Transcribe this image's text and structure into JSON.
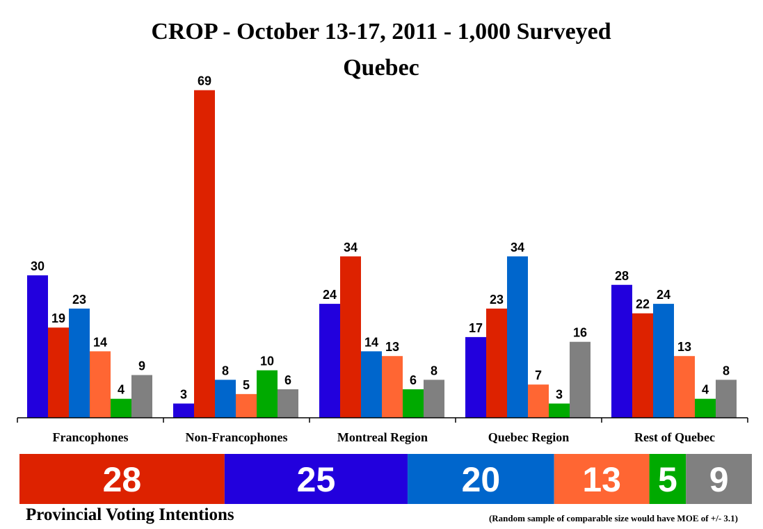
{
  "title_line1": "CROP - October 13-17, 2011 - 1,000 Surveyed",
  "title_line2": "Quebec",
  "footer_left": "Provincial Voting Intentions",
  "footer_right": "(Random sample of comparable size would have MOE of +/- 3.1)",
  "chart_data": {
    "type": "bar",
    "categories": [
      "Francophones",
      "Non-Francophones",
      "Montreal Region",
      "Quebec Region",
      "Rest of Quebec"
    ],
    "series": [
      {
        "color": "#2200DD",
        "values": [
          30,
          3,
          24,
          17,
          28
        ]
      },
      {
        "color": "#DD2200",
        "values": [
          19,
          69,
          34,
          23,
          22
        ]
      },
      {
        "color": "#0066CC",
        "values": [
          23,
          8,
          14,
          34,
          24
        ]
      },
      {
        "color": "#FF6633",
        "values": [
          14,
          5,
          13,
          7,
          13
        ]
      },
      {
        "color": "#00AA00",
        "values": [
          4,
          10,
          6,
          3,
          4
        ]
      },
      {
        "color": "#808080",
        "values": [
          9,
          6,
          8,
          16,
          8
        ]
      }
    ],
    "ylim": [
      0,
      72
    ],
    "summary_bar": [
      {
        "value": 28,
        "color": "#DD2200"
      },
      {
        "value": 25,
        "color": "#2200DD"
      },
      {
        "value": 20,
        "color": "#0066CC"
      },
      {
        "value": 13,
        "color": "#FF6633"
      },
      {
        "value": 5,
        "color": "#00AA00"
      },
      {
        "value": 9,
        "color": "#808080"
      }
    ]
  }
}
